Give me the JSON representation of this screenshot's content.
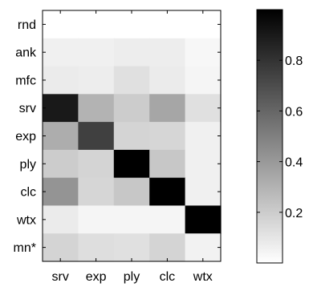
{
  "chart_data": {
    "type": "heatmap",
    "title": "",
    "xlabel": "",
    "ylabel": "",
    "x_categories": [
      "srv",
      "exp",
      "ply",
      "clc",
      "wtx"
    ],
    "y_categories": [
      "rnd",
      "ank",
      "mfc",
      "srv",
      "exp",
      "ply",
      "clc",
      "wtx",
      "mn*"
    ],
    "colormap": "gray-reversed",
    "color_range": [
      0,
      1
    ],
    "colorbar_ticks": [
      {
        "value": 0.2,
        "label": "0.2"
      },
      {
        "value": 0.4,
        "label": "0.4"
      },
      {
        "value": 0.6,
        "label": "0.6"
      },
      {
        "value": 0.8,
        "label": "0.8"
      }
    ],
    "values": [
      [
        0.0,
        0.0,
        0.0,
        0.0,
        0.0
      ],
      [
        0.06,
        0.06,
        0.07,
        0.07,
        0.03
      ],
      [
        0.08,
        0.07,
        0.12,
        0.08,
        0.04
      ],
      [
        0.9,
        0.3,
        0.2,
        0.35,
        0.12
      ],
      [
        0.32,
        0.75,
        0.17,
        0.16,
        0.06
      ],
      [
        0.2,
        0.17,
        1.0,
        0.22,
        0.06
      ],
      [
        0.42,
        0.16,
        0.22,
        1.0,
        0.06
      ],
      [
        0.08,
        0.04,
        0.04,
        0.04,
        1.0
      ],
      [
        0.17,
        0.13,
        0.12,
        0.17,
        0.05
      ]
    ]
  }
}
